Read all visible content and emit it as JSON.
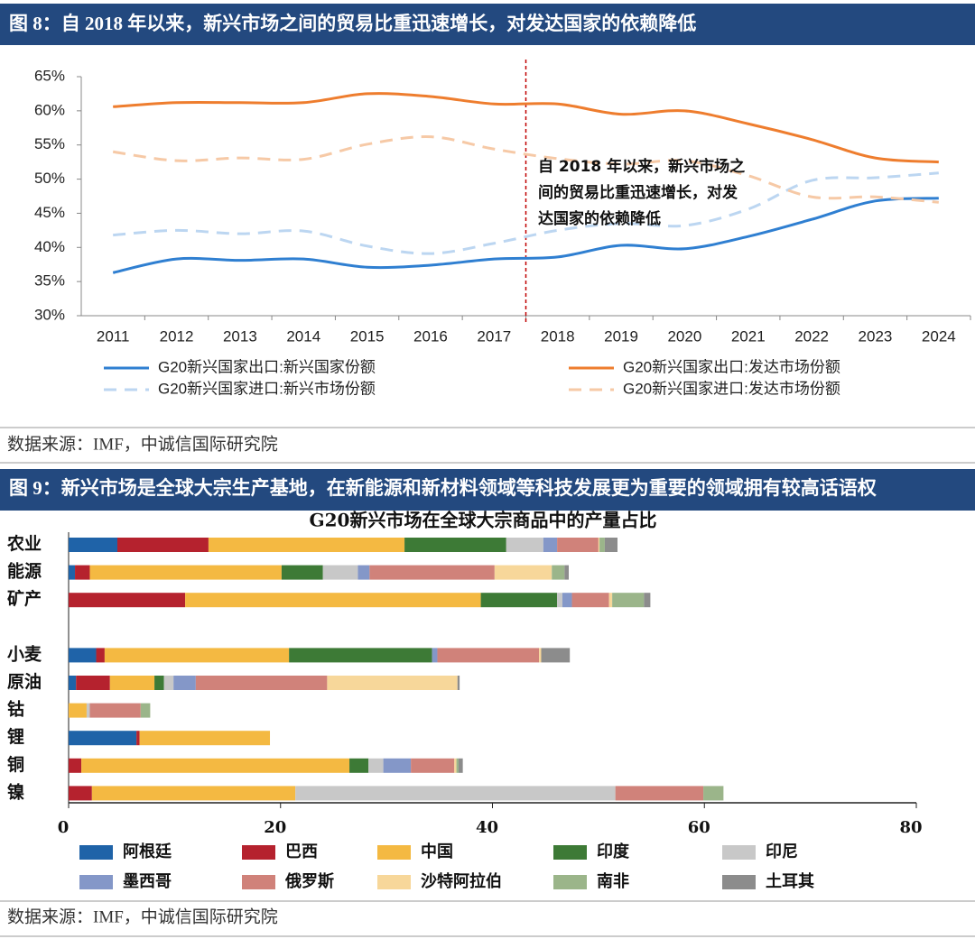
{
  "chart_data": [
    {
      "type": "line",
      "caption": "图 8：自 2018 年以来，新兴市场之间的贸易比重迅速增长，对发达国家的依赖降低",
      "categories": [
        "2011",
        "2012",
        "2013",
        "2014",
        "2015",
        "2016",
        "2017",
        "2018",
        "2019",
        "2020",
        "2021",
        "2022",
        "2023",
        "2024"
      ],
      "ylim": [
        30,
        65
      ],
      "yticks": [
        {
          "value": 30,
          "label": "30%"
        },
        {
          "value": 35,
          "label": "35%"
        },
        {
          "value": 40,
          "label": "40%"
        },
        {
          "value": 45,
          "label": "45%"
        },
        {
          "value": 50,
          "label": "50%"
        },
        {
          "value": 55,
          "label": "55%"
        },
        {
          "value": 60,
          "label": "60%"
        },
        {
          "value": 65,
          "label": "65%"
        }
      ],
      "series": [
        {
          "name": "G20新兴国家出口:新兴国家份额",
          "color": "#2f7fd1",
          "linestyle": "solid",
          "values": [
            36.3,
            38.3,
            38.1,
            38.3,
            37.1,
            37.4,
            38.3,
            38.6,
            40.3,
            39.8,
            41.6,
            44.1,
            46.8,
            47.2
          ]
        },
        {
          "name": "G20新兴国家出口:发达市场份额",
          "color": "#ee7d2e",
          "linestyle": "solid",
          "values": [
            60.6,
            61.2,
            61.2,
            61.2,
            62.5,
            62.1,
            61.0,
            61.0,
            59.5,
            60.0,
            58.1,
            55.8,
            53.1,
            52.5
          ]
        },
        {
          "name": "G20新兴国家进口:新兴市场份额",
          "color": "#bcd6f1",
          "linestyle": "dashed",
          "values": [
            41.8,
            42.5,
            42.0,
            42.4,
            40.2,
            39.1,
            40.6,
            42.5,
            43.5,
            43.2,
            45.6,
            49.8,
            50.2,
            50.9
          ]
        },
        {
          "name": "G20新兴国家进口:发达市场份额",
          "color": "#f6c9a6",
          "linestyle": "dashed",
          "values": [
            54.0,
            52.7,
            53.1,
            52.9,
            55.1,
            56.2,
            54.4,
            53.0,
            52.2,
            52.7,
            50.5,
            47.4,
            47.4,
            46.6
          ]
        }
      ],
      "annotation": [
        "自 2018 年以来，新兴市场之",
        "间的贸易比重迅速增长，对发",
        "达国家的依赖降低"
      ],
      "source": "数据来源：IMF，中诚信国际研究院"
    },
    {
      "type": "bar",
      "orientation": "horizontal",
      "stacked": true,
      "caption": "图 9：新兴市场是全球大宗生产基地，在新能源和新材料领域等科技发展更为重要的领域拥有较高话语权",
      "title": "G20新兴市场在全球大宗商品中的产量占比",
      "categories": [
        "农业",
        "能源",
        "矿产",
        null,
        "小麦",
        "原油",
        "钴",
        "锂",
        "铜",
        "镍"
      ],
      "xlim": [
        0,
        80
      ],
      "xticks": [
        0,
        20,
        40,
        60,
        80
      ],
      "series": [
        {
          "name": "阿根廷",
          "color": "#1f63a8",
          "values": [
            4.6,
            0.6,
            0,
            null,
            2.6,
            0.7,
            0,
            6.4,
            0,
            0
          ]
        },
        {
          "name": "巴西",
          "color": "#b5222e",
          "values": [
            8.6,
            1.4,
            11.0,
            null,
            0.8,
            3.2,
            0,
            0.3,
            1.2,
            2.2
          ]
        },
        {
          "name": "中国",
          "color": "#f4b942",
          "values": [
            18.5,
            18.1,
            27.9,
            null,
            17.4,
            4.2,
            1.7,
            12.3,
            25.3,
            19.2
          ]
        },
        {
          "name": "印度",
          "color": "#3d7a36",
          "values": [
            9.6,
            3.9,
            7.2,
            null,
            13.5,
            0.9,
            0,
            0,
            1.8,
            0
          ]
        },
        {
          "name": "印尼",
          "color": "#c8c8c8",
          "values": [
            3.5,
            3.3,
            0.5,
            null,
            0,
            0.9,
            0.3,
            0,
            1.4,
            30.2
          ]
        },
        {
          "name": "墨西哥",
          "color": "#8497c8",
          "values": [
            1.3,
            1.1,
            0.9,
            null,
            0.5,
            2.1,
            0,
            0,
            2.6,
            0
          ]
        },
        {
          "name": "俄罗斯",
          "color": "#d0827a",
          "values": [
            3.9,
            11.8,
            3.5,
            null,
            9.6,
            12.4,
            4.8,
            0,
            4.1,
            8.3
          ]
        },
        {
          "name": "沙特阿拉伯",
          "color": "#f7d79a",
          "values": [
            0.1,
            5.4,
            0.3,
            null,
            0.2,
            12.3,
            0,
            0,
            0.2,
            0
          ]
        },
        {
          "name": "南非",
          "color": "#9bb58a",
          "values": [
            0.5,
            1.2,
            3.0,
            null,
            0,
            0,
            0.9,
            0,
            0.2,
            1.9
          ]
        },
        {
          "name": "土耳其",
          "color": "#8c8c8c",
          "values": [
            1.2,
            0.4,
            0.6,
            null,
            2.7,
            0.2,
            0,
            0,
            0.4,
            0
          ]
        }
      ],
      "source": "数据来源：IMF，中诚信国际研究院"
    }
  ]
}
